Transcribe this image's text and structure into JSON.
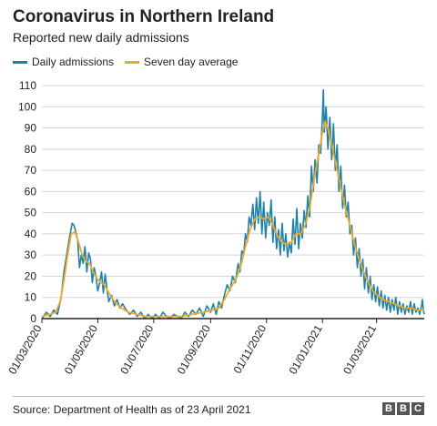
{
  "header": {
    "title": "Coronavirus in Northern Ireland",
    "subtitle": "Reported new daily admissions"
  },
  "legend": {
    "daily_label": "Daily admissions",
    "average_label": "Seven day average"
  },
  "footer": {
    "source": "Source: Department of Health as of 23 April 2021",
    "logo_letters": [
      "B",
      "B",
      "C"
    ]
  },
  "colors": {
    "daily": "#1f82a8",
    "average": "#f5a623",
    "grid": "#d5d5d5",
    "baseline": "#222222"
  },
  "chart_data": {
    "type": "line",
    "ylim": [
      0,
      110
    ],
    "yticks": [
      0,
      10,
      20,
      30,
      40,
      50,
      60,
      70,
      80,
      90,
      100,
      110
    ],
    "xlim": [
      "2020-03-01",
      "2021-04-22"
    ],
    "xticks": [
      "2020-03-01",
      "2020-05-01",
      "2020-07-01",
      "2020-09-01",
      "2020-11-01",
      "2021-01-01",
      "2021-03-01"
    ],
    "xtick_labels": [
      "01/03/2020",
      "01/05/2020",
      "01/07/2020",
      "01/09/2020",
      "01/11/2020",
      "01/01/2021",
      "01/03/2021"
    ],
    "grid": true,
    "legend_position": "top-left",
    "series": [
      {
        "name": "Daily admissions",
        "points": [
          [
            "2020-03-01",
            0
          ],
          [
            "2020-03-06",
            3
          ],
          [
            "2020-03-10",
            1
          ],
          [
            "2020-03-14",
            4
          ],
          [
            "2020-03-18",
            2
          ],
          [
            "2020-03-22",
            10
          ],
          [
            "2020-03-25",
            22
          ],
          [
            "2020-03-28",
            30
          ],
          [
            "2020-03-31",
            38
          ],
          [
            "2020-04-03",
            45
          ],
          [
            "2020-04-05",
            44
          ],
          [
            "2020-04-07",
            41
          ],
          [
            "2020-04-09",
            37
          ],
          [
            "2020-04-11",
            24
          ],
          [
            "2020-04-13",
            30
          ],
          [
            "2020-04-15",
            26
          ],
          [
            "2020-04-17",
            34
          ],
          [
            "2020-04-19",
            22
          ],
          [
            "2020-04-21",
            31
          ],
          [
            "2020-04-23",
            28
          ],
          [
            "2020-04-25",
            17
          ],
          [
            "2020-04-27",
            24
          ],
          [
            "2020-04-29",
            20
          ],
          [
            "2020-05-01",
            13
          ],
          [
            "2020-05-03",
            17
          ],
          [
            "2020-05-05",
            22
          ],
          [
            "2020-05-07",
            12
          ],
          [
            "2020-05-09",
            21
          ],
          [
            "2020-05-11",
            14
          ],
          [
            "2020-05-13",
            8
          ],
          [
            "2020-05-16",
            11
          ],
          [
            "2020-05-19",
            6
          ],
          [
            "2020-05-22",
            9
          ],
          [
            "2020-05-25",
            5
          ],
          [
            "2020-05-28",
            7
          ],
          [
            "2020-06-01",
            4
          ],
          [
            "2020-06-05",
            2
          ],
          [
            "2020-06-09",
            4
          ],
          [
            "2020-06-13",
            1
          ],
          [
            "2020-06-17",
            3
          ],
          [
            "2020-06-21",
            0
          ],
          [
            "2020-06-25",
            2
          ],
          [
            "2020-06-29",
            0
          ],
          [
            "2020-07-03",
            2
          ],
          [
            "2020-07-07",
            0
          ],
          [
            "2020-07-11",
            3
          ],
          [
            "2020-07-15",
            1
          ],
          [
            "2020-07-19",
            0
          ],
          [
            "2020-07-23",
            2
          ],
          [
            "2020-07-27",
            1
          ],
          [
            "2020-07-31",
            0
          ],
          [
            "2020-08-04",
            3
          ],
          [
            "2020-08-08",
            1
          ],
          [
            "2020-08-12",
            4
          ],
          [
            "2020-08-16",
            2
          ],
          [
            "2020-08-20",
            5
          ],
          [
            "2020-08-24",
            1
          ],
          [
            "2020-08-28",
            6
          ],
          [
            "2020-09-01",
            3
          ],
          [
            "2020-09-04",
            7
          ],
          [
            "2020-09-07",
            2
          ],
          [
            "2020-09-10",
            8
          ],
          [
            "2020-09-13",
            5
          ],
          [
            "2020-09-16",
            11
          ],
          [
            "2020-09-19",
            16
          ],
          [
            "2020-09-22",
            13
          ],
          [
            "2020-09-25",
            20
          ],
          [
            "2020-09-28",
            17
          ],
          [
            "2020-10-01",
            26
          ],
          [
            "2020-10-03",
            22
          ],
          [
            "2020-10-05",
            32
          ],
          [
            "2020-10-07",
            30
          ],
          [
            "2020-10-09",
            40
          ],
          [
            "2020-10-11",
            36
          ],
          [
            "2020-10-13",
            48
          ],
          [
            "2020-10-15",
            44
          ],
          [
            "2020-10-17",
            54
          ],
          [
            "2020-10-19",
            42
          ],
          [
            "2020-10-21",
            57
          ],
          [
            "2020-10-23",
            45
          ],
          [
            "2020-10-25",
            60
          ],
          [
            "2020-10-27",
            40
          ],
          [
            "2020-10-29",
            55
          ],
          [
            "2020-10-31",
            38
          ],
          [
            "2020-11-02",
            50
          ],
          [
            "2020-11-04",
            44
          ],
          [
            "2020-11-06",
            56
          ],
          [
            "2020-11-08",
            36
          ],
          [
            "2020-11-10",
            48
          ],
          [
            "2020-11-12",
            33
          ],
          [
            "2020-11-14",
            42
          ],
          [
            "2020-11-16",
            30
          ],
          [
            "2020-11-18",
            45
          ],
          [
            "2020-11-20",
            32
          ],
          [
            "2020-11-22",
            40
          ],
          [
            "2020-11-24",
            29
          ],
          [
            "2020-11-26",
            36
          ],
          [
            "2020-11-28",
            31
          ],
          [
            "2020-11-30",
            47
          ],
          [
            "2020-12-02",
            35
          ],
          [
            "2020-12-04",
            52
          ],
          [
            "2020-12-06",
            33
          ],
          [
            "2020-12-08",
            45
          ],
          [
            "2020-12-10",
            38
          ],
          [
            "2020-12-12",
            51
          ],
          [
            "2020-12-14",
            43
          ],
          [
            "2020-12-16",
            58
          ],
          [
            "2020-12-18",
            48
          ],
          [
            "2020-12-20",
            72
          ],
          [
            "2020-12-22",
            60
          ],
          [
            "2020-12-24",
            75
          ],
          [
            "2020-12-26",
            64
          ],
          [
            "2020-12-28",
            82
          ],
          [
            "2020-12-30",
            78
          ],
          [
            "2021-01-01",
            96
          ],
          [
            "2021-01-02",
            108
          ],
          [
            "2021-01-03",
            88
          ],
          [
            "2021-01-05",
            100
          ],
          [
            "2021-01-07",
            80
          ],
          [
            "2021-01-09",
            95
          ],
          [
            "2021-01-11",
            75
          ],
          [
            "2021-01-13",
            92
          ],
          [
            "2021-01-15",
            70
          ],
          [
            "2021-01-17",
            82
          ],
          [
            "2021-01-19",
            60
          ],
          [
            "2021-01-21",
            72
          ],
          [
            "2021-01-23",
            52
          ],
          [
            "2021-01-25",
            63
          ],
          [
            "2021-01-27",
            48
          ],
          [
            "2021-01-29",
            55
          ],
          [
            "2021-01-31",
            40
          ],
          [
            "2021-02-02",
            44
          ],
          [
            "2021-02-04",
            30
          ],
          [
            "2021-02-06",
            38
          ],
          [
            "2021-02-08",
            24
          ],
          [
            "2021-02-10",
            33
          ],
          [
            "2021-02-12",
            20
          ],
          [
            "2021-02-14",
            28
          ],
          [
            "2021-02-16",
            14
          ],
          [
            "2021-02-18",
            24
          ],
          [
            "2021-02-20",
            12
          ],
          [
            "2021-02-22",
            20
          ],
          [
            "2021-02-24",
            9
          ],
          [
            "2021-02-26",
            16
          ],
          [
            "2021-02-28",
            8
          ],
          [
            "2021-03-02",
            15
          ],
          [
            "2021-03-04",
            6
          ],
          [
            "2021-03-06",
            13
          ],
          [
            "2021-03-08",
            5
          ],
          [
            "2021-03-10",
            11
          ],
          [
            "2021-03-12",
            4
          ],
          [
            "2021-03-14",
            10
          ],
          [
            "2021-03-16",
            3
          ],
          [
            "2021-03-18",
            9
          ],
          [
            "2021-03-20",
            4
          ],
          [
            "2021-03-22",
            10
          ],
          [
            "2021-03-24",
            2
          ],
          [
            "2021-03-26",
            8
          ],
          [
            "2021-03-28",
            3
          ],
          [
            "2021-03-30",
            7
          ],
          [
            "2021-04-01",
            2
          ],
          [
            "2021-04-03",
            6
          ],
          [
            "2021-04-05",
            3
          ],
          [
            "2021-04-07",
            8
          ],
          [
            "2021-04-09",
            2
          ],
          [
            "2021-04-11",
            7
          ],
          [
            "2021-04-13",
            3
          ],
          [
            "2021-04-15",
            5
          ],
          [
            "2021-04-17",
            2
          ],
          [
            "2021-04-19",
            6
          ],
          [
            "2021-04-20",
            9
          ],
          [
            "2021-04-21",
            4
          ],
          [
            "2021-04-22",
            2
          ]
        ]
      },
      {
        "name": "Seven day average",
        "points": [
          [
            "2020-03-01",
            1
          ],
          [
            "2020-03-10",
            2
          ],
          [
            "2020-03-16",
            3
          ],
          [
            "2020-03-21",
            8
          ],
          [
            "2020-03-25",
            18
          ],
          [
            "2020-03-29",
            30
          ],
          [
            "2020-04-02",
            40
          ],
          [
            "2020-04-06",
            41
          ],
          [
            "2020-04-10",
            36
          ],
          [
            "2020-04-14",
            30
          ],
          [
            "2020-04-18",
            27
          ],
          [
            "2020-04-22",
            26
          ],
          [
            "2020-04-26",
            22
          ],
          [
            "2020-04-30",
            19
          ],
          [
            "2020-05-04",
            17
          ],
          [
            "2020-05-08",
            16
          ],
          [
            "2020-05-12",
            13
          ],
          [
            "2020-05-16",
            10
          ],
          [
            "2020-05-21",
            7
          ],
          [
            "2020-05-27",
            5
          ],
          [
            "2020-06-03",
            3
          ],
          [
            "2020-06-12",
            2
          ],
          [
            "2020-06-22",
            1
          ],
          [
            "2020-07-05",
            1
          ],
          [
            "2020-07-20",
            1
          ],
          [
            "2020-08-01",
            1
          ],
          [
            "2020-08-12",
            2
          ],
          [
            "2020-08-24",
            3
          ],
          [
            "2020-09-03",
            4
          ],
          [
            "2020-09-10",
            5
          ],
          [
            "2020-09-16",
            9
          ],
          [
            "2020-09-22",
            14
          ],
          [
            "2020-09-28",
            18
          ],
          [
            "2020-10-04",
            25
          ],
          [
            "2020-10-09",
            34
          ],
          [
            "2020-10-14",
            42
          ],
          [
            "2020-10-19",
            47
          ],
          [
            "2020-10-24",
            48
          ],
          [
            "2020-10-29",
            47
          ],
          [
            "2020-11-03",
            48
          ],
          [
            "2020-11-08",
            44
          ],
          [
            "2020-11-13",
            39
          ],
          [
            "2020-11-18",
            36
          ],
          [
            "2020-11-23",
            35
          ],
          [
            "2020-11-28",
            36
          ],
          [
            "2020-12-03",
            40
          ],
          [
            "2020-12-08",
            40
          ],
          [
            "2020-12-13",
            44
          ],
          [
            "2020-12-18",
            52
          ],
          [
            "2020-12-23",
            66
          ],
          [
            "2020-12-28",
            78
          ],
          [
            "2021-01-01",
            88
          ],
          [
            "2021-01-04",
            93
          ],
          [
            "2021-01-07",
            90
          ],
          [
            "2021-01-10",
            84
          ],
          [
            "2021-01-14",
            76
          ],
          [
            "2021-01-18",
            68
          ],
          [
            "2021-01-22",
            60
          ],
          [
            "2021-01-26",
            52
          ],
          [
            "2021-01-31",
            44
          ],
          [
            "2021-02-05",
            35
          ],
          [
            "2021-02-10",
            28
          ],
          [
            "2021-02-15",
            22
          ],
          [
            "2021-02-20",
            17
          ],
          [
            "2021-02-25",
            13
          ],
          [
            "2021-03-02",
            11
          ],
          [
            "2021-03-08",
            9
          ],
          [
            "2021-03-14",
            8
          ],
          [
            "2021-03-20",
            7
          ],
          [
            "2021-03-26",
            6
          ],
          [
            "2021-04-01",
            5
          ],
          [
            "2021-04-08",
            5
          ],
          [
            "2021-04-15",
            4
          ],
          [
            "2021-04-22",
            4
          ]
        ]
      }
    ]
  }
}
